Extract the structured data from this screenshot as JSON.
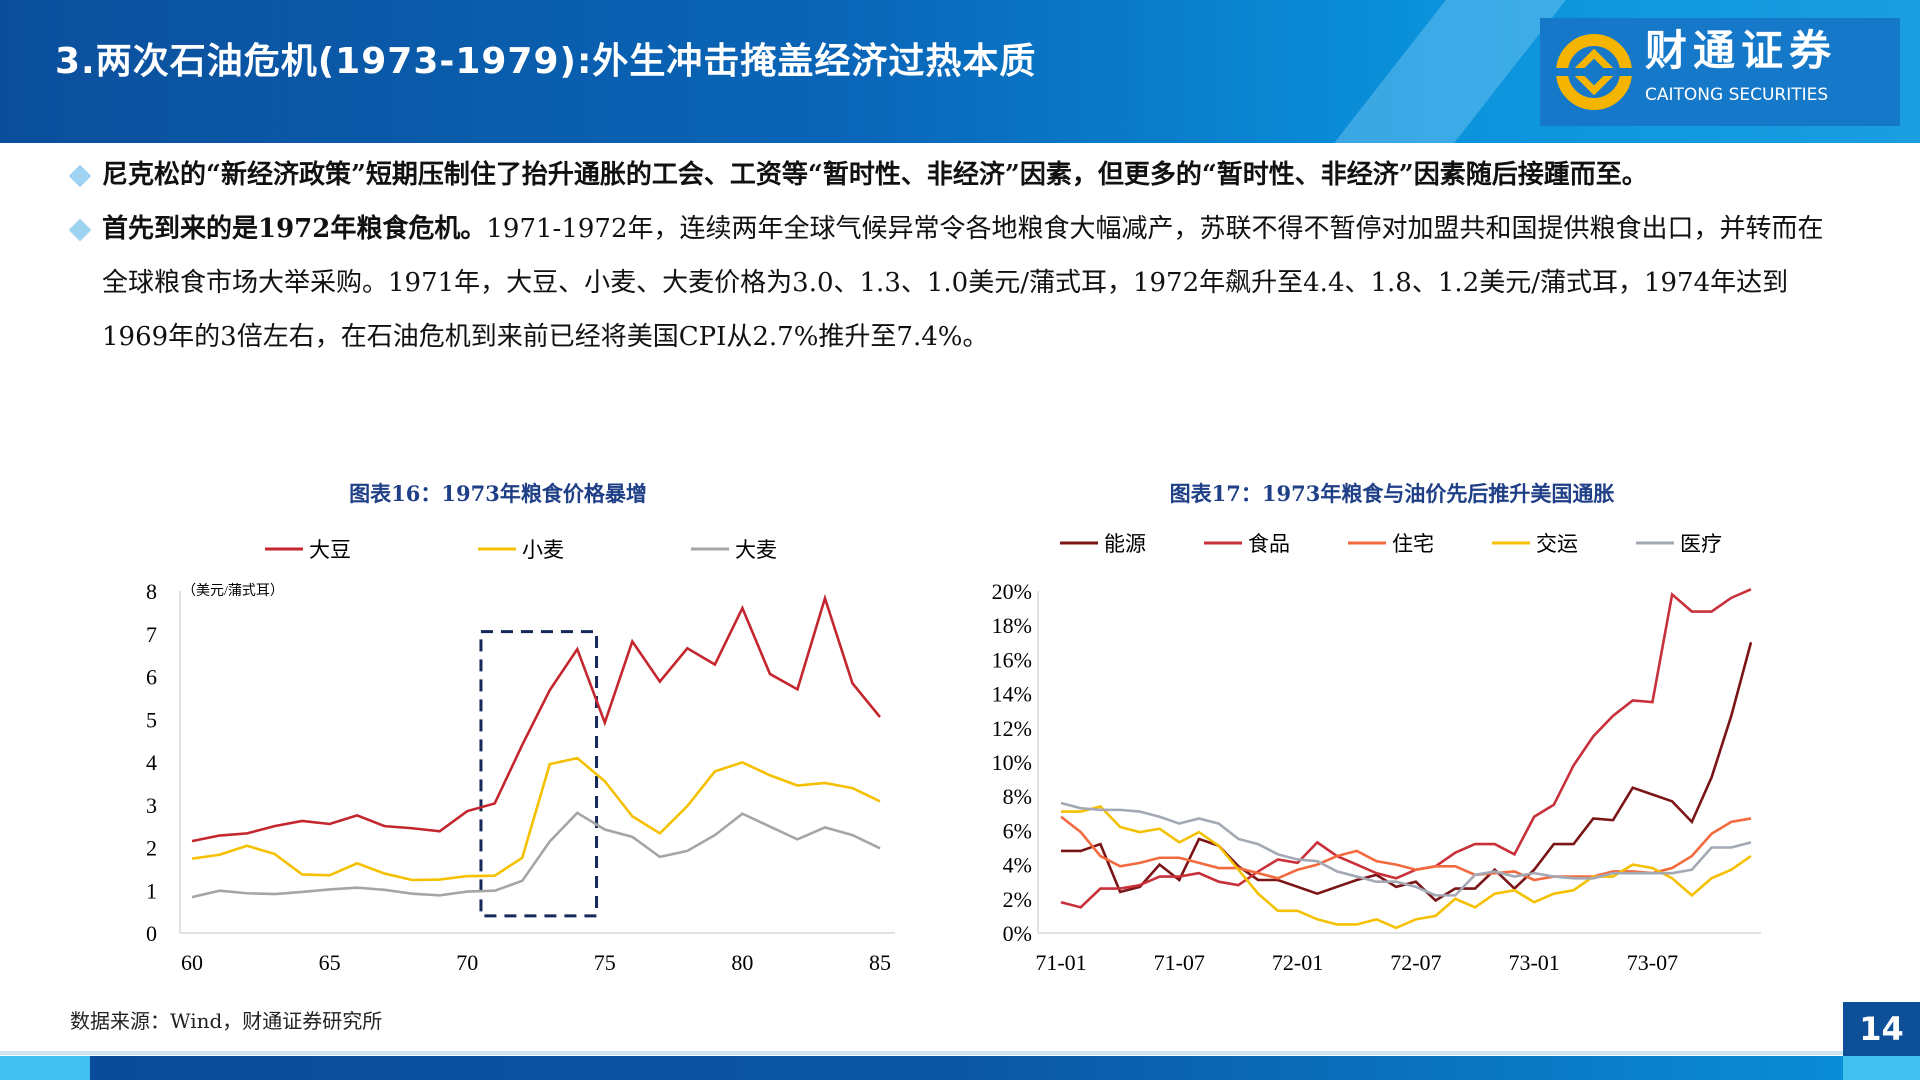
{
  "header": {
    "title": "3.两次石油危机(1973-1979):外生冲击掩盖经济过热本质",
    "logo_cn": "财通证券",
    "logo_en": "CAITONG SECURITIES",
    "accent": "#0b5fae"
  },
  "bullets": [
    {
      "bold": "尼克松的“新经济政策”短期压制住了抬升通胀的工会、工资等“暂时性、非经济”因素，但更多的“暂时性、非经济”因素随后接踵而至。",
      "text": ""
    },
    {
      "bold": "首先到来的是1972年粮食危机。",
      "text": "1971-1972年，连续两年全球气候异常令各地粮食大幅减产，苏联不得不暂停对加盟共和国提供粮食出口，并转而在全球粮食市场大举采购。1971年，大豆、小麦、大麦价格为3.0、1.3、1.0美元/蒲式耳，1972年飙升至4.4、1.8、1.2美元/蒲式耳，1974年达到1969年的3倍左右，在石油危机到来前已经将美国CPI从2.7%推升至7.4%。"
    }
  ],
  "chart_data": [
    {
      "type": "line",
      "title": "图表16：1973年粮食价格暴增",
      "ylabel": "（美元/蒲式耳）",
      "ylim": [
        0,
        8
      ],
      "yticks": [
        0,
        1,
        2,
        3,
        4,
        5,
        6,
        7,
        8
      ],
      "xlim": [
        60,
        85
      ],
      "xticks": [
        60,
        65,
        70,
        75,
        80,
        85
      ],
      "legend": "top",
      "grid": false,
      "x": [
        60,
        61,
        62,
        63,
        64,
        65,
        66,
        67,
        68,
        69,
        70,
        71,
        72,
        73,
        74,
        75,
        76,
        77,
        78,
        79,
        80,
        81,
        82,
        83,
        84,
        85
      ],
      "highlight_box": {
        "x": [
          70.5,
          74.7
        ],
        "y": [
          0.4,
          7.05
        ],
        "color": "#14285a"
      },
      "series": [
        {
          "name": "大豆",
          "color": "#c4262e",
          "values": [
            2.15,
            2.28,
            2.33,
            2.5,
            2.62,
            2.55,
            2.75,
            2.5,
            2.45,
            2.38,
            2.85,
            3.03,
            4.4,
            5.68,
            6.64,
            4.92,
            6.82,
            5.88,
            6.66,
            6.28,
            7.6,
            6.06,
            5.7,
            7.83,
            5.84,
            5.05
          ]
        },
        {
          "name": "小麦",
          "color": "#f5c000",
          "values": [
            1.74,
            1.83,
            2.04,
            1.85,
            1.37,
            1.35,
            1.63,
            1.39,
            1.24,
            1.25,
            1.33,
            1.34,
            1.76,
            3.95,
            4.09,
            3.55,
            2.73,
            2.33,
            2.97,
            3.78,
            3.99,
            3.69,
            3.45,
            3.51,
            3.39,
            3.08
          ]
        },
        {
          "name": "大麦",
          "color": "#a5a5a5",
          "values": [
            0.84,
            0.99,
            0.93,
            0.91,
            0.96,
            1.02,
            1.06,
            1.01,
            0.92,
            0.88,
            0.97,
            0.99,
            1.22,
            2.14,
            2.81,
            2.42,
            2.25,
            1.78,
            1.92,
            2.29,
            2.79,
            2.49,
            2.19,
            2.47,
            2.29,
            1.98
          ]
        }
      ]
    },
    {
      "type": "line",
      "title": "图表17：1973年粮食与油价先后推升美国通胀",
      "ylim": [
        0,
        20
      ],
      "yticks": [
        "0%",
        "2%",
        "4%",
        "6%",
        "8%",
        "10%",
        "12%",
        "14%",
        "16%",
        "18%",
        "20%"
      ],
      "xlim": [
        "71-01",
        "73-12"
      ],
      "xticks": [
        "71-01",
        "71-07",
        "72-01",
        "72-07",
        "73-01",
        "73-07"
      ],
      "legend": "top",
      "grid": false,
      "series": [
        {
          "name": "能源",
          "color": "#7b1416",
          "values": [
            4.8,
            4.8,
            5.2,
            2.4,
            2.7,
            4.0,
            3.1,
            5.5,
            5.1,
            3.9,
            3.1,
            3.1,
            2.7,
            2.3,
            2.7,
            3.1,
            3.4,
            2.7,
            3.0,
            1.9,
            2.6,
            2.6,
            3.7,
            2.6,
            3.7,
            5.2,
            5.2,
            6.7,
            6.6,
            8.5,
            8.1,
            7.7,
            6.5,
            9.1,
            12.7,
            17.0
          ]
        },
        {
          "name": "食品",
          "color": "#c8303a",
          "values": [
            1.8,
            1.5,
            2.6,
            2.6,
            2.8,
            3.3,
            3.3,
            3.5,
            3.0,
            2.8,
            3.6,
            4.3,
            4.1,
            5.3,
            4.5,
            4.0,
            3.5,
            3.2,
            3.7,
            3.9,
            4.7,
            5.2,
            5.2,
            4.6,
            6.8,
            7.5,
            9.8,
            11.5,
            12.7,
            13.6,
            13.5,
            19.8,
            18.8,
            18.8,
            19.6,
            20.1
          ]
        },
        {
          "name": "住宅",
          "color": "#f26a3d",
          "values": [
            6.8,
            5.9,
            4.5,
            3.9,
            4.1,
            4.4,
            4.4,
            4.1,
            3.8,
            3.8,
            3.5,
            3.2,
            3.7,
            4.0,
            4.5,
            4.8,
            4.2,
            4.0,
            3.7,
            3.9,
            3.9,
            3.4,
            3.5,
            3.6,
            3.1,
            3.3,
            3.3,
            3.3,
            3.6,
            3.6,
            3.5,
            3.8,
            4.5,
            5.8,
            6.5,
            6.7
          ]
        },
        {
          "name": "交运",
          "color": "#f5c000",
          "values": [
            7.1,
            7.1,
            7.4,
            6.2,
            5.9,
            6.1,
            5.3,
            5.9,
            5.1,
            3.7,
            2.3,
            1.3,
            1.3,
            0.8,
            0.5,
            0.5,
            0.8,
            0.3,
            0.8,
            1.0,
            2.0,
            1.5,
            2.3,
            2.5,
            1.8,
            2.3,
            2.5,
            3.3,
            3.3,
            4.0,
            3.8,
            3.2,
            2.2,
            3.2,
            3.7,
            4.5
          ]
        },
        {
          "name": "医疗",
          "color": "#a3a9b4",
          "values": [
            7.6,
            7.3,
            7.2,
            7.2,
            7.1,
            6.8,
            6.4,
            6.7,
            6.4,
            5.5,
            5.2,
            4.6,
            4.3,
            4.2,
            3.6,
            3.3,
            3.0,
            3.0,
            2.7,
            2.2,
            2.2,
            3.4,
            3.6,
            3.3,
            3.5,
            3.3,
            3.2,
            3.2,
            3.5,
            3.5,
            3.5,
            3.5,
            3.7,
            5.0,
            5.0,
            5.3
          ]
        }
      ]
    }
  ],
  "footer": {
    "source": "数据来源：Wind，财通证券研究所",
    "page": "14"
  }
}
